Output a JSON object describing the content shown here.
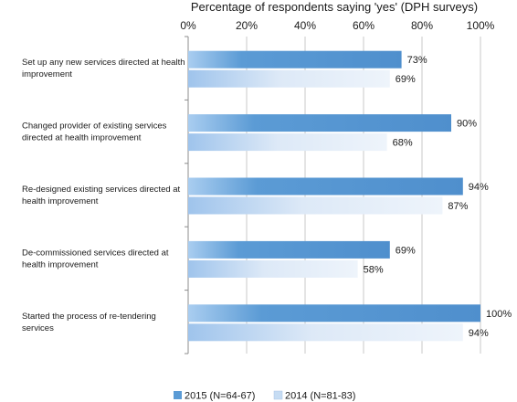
{
  "chart_data": {
    "type": "bar",
    "orientation": "horizontal",
    "title": "Percentage of respondents saying 'yes' (DPH surveys)",
    "xlim": [
      0,
      100
    ],
    "x_ticks": [
      "0%",
      "20%",
      "40%",
      "60%",
      "80%",
      "100%"
    ],
    "grid": true,
    "legend_position": "bottom",
    "categories": [
      [
        "Set up any new services directed at health",
        "improvement"
      ],
      [
        "Changed provider of existing services",
        "directed at health improvement"
      ],
      [
        "Re-designed existing services directed at",
        "health improvement"
      ],
      [
        "De-commissioned services directed at",
        "health improvement"
      ],
      [
        "Started the process of re-tendering",
        "services"
      ]
    ],
    "series": [
      {
        "name": "2015 (N=64-67)",
        "values": [
          73,
          90,
          94,
          69,
          100
        ],
        "labels": [
          "73%",
          "90%",
          "94%",
          "69%",
          "100%"
        ],
        "color": "#5b9bd5"
      },
      {
        "name": "2014 (N=81-83)",
        "values": [
          69,
          68,
          87,
          58,
          94
        ],
        "labels": [
          "69%",
          "68%",
          "87%",
          "58%",
          "94%"
        ],
        "color": "#c6dcf3"
      }
    ]
  }
}
